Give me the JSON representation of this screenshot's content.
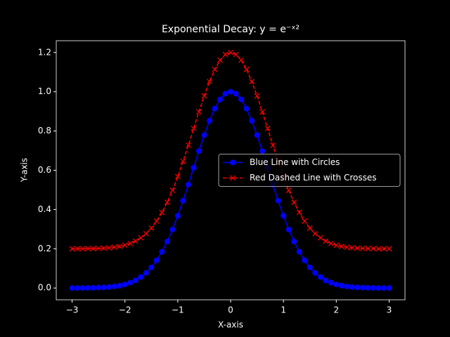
{
  "chart_data": {
    "type": "line",
    "title": "Exponential Decay: y = e⁻ˣ²",
    "xlabel": "X-axis",
    "ylabel": "Y-axis",
    "x": [
      -3,
      -2.9,
      -2.8,
      -2.7,
      -2.6,
      -2.5,
      -2.4,
      -2.3,
      -2.2,
      -2.1,
      -2,
      -1.9,
      -1.8,
      -1.7,
      -1.6,
      -1.5,
      -1.4,
      -1.3,
      -1.2,
      -1.1,
      -1,
      -0.9,
      -0.8,
      -0.7,
      -0.6,
      -0.5,
      -0.4,
      -0.3,
      -0.2,
      -0.1,
      0,
      0.1,
      0.2,
      0.3,
      0.4,
      0.5,
      0.6,
      0.7,
      0.8,
      0.9,
      1,
      1.1,
      1.2,
      1.3,
      1.4,
      1.5,
      1.6,
      1.7,
      1.8,
      1.9,
      2,
      2.1,
      2.2,
      2.3,
      2.4,
      2.5,
      2.6,
      2.7,
      2.8,
      2.9,
      3
    ],
    "series": [
      {
        "name": "Blue Line with Circles",
        "color": "blue",
        "marker": "circle",
        "dash": false,
        "values": [
          0,
          0,
          0,
          0.001,
          0.001,
          0.002,
          0.003,
          0.005,
          0.008,
          0.012,
          0.018,
          0.027,
          0.039,
          0.056,
          0.077,
          0.105,
          0.141,
          0.185,
          0.237,
          0.298,
          0.368,
          0.445,
          0.527,
          0.613,
          0.698,
          0.779,
          0.852,
          0.914,
          0.961,
          0.99,
          1,
          0.99,
          0.961,
          0.914,
          0.852,
          0.779,
          0.698,
          0.613,
          0.527,
          0.445,
          0.368,
          0.298,
          0.237,
          0.185,
          0.141,
          0.105,
          0.077,
          0.056,
          0.039,
          0.027,
          0.018,
          0.012,
          0.008,
          0.005,
          0.003,
          0.002,
          0.001,
          0.001,
          0,
          0,
          0
        ]
      },
      {
        "name": "Red Dashed Line with Crosses",
        "color": "red",
        "marker": "x",
        "dash": true,
        "values": [
          0.2,
          0.2,
          0.2,
          0.201,
          0.201,
          0.202,
          0.203,
          0.205,
          0.208,
          0.212,
          0.218,
          0.227,
          0.239,
          0.256,
          0.277,
          0.305,
          0.341,
          0.385,
          0.437,
          0.498,
          0.568,
          0.645,
          0.727,
          0.813,
          0.898,
          0.979,
          1.052,
          1.114,
          1.161,
          1.19,
          1.2,
          1.19,
          1.161,
          1.114,
          1.052,
          0.979,
          0.898,
          0.813,
          0.727,
          0.645,
          0.568,
          0.498,
          0.437,
          0.385,
          0.341,
          0.305,
          0.277,
          0.256,
          0.239,
          0.227,
          0.218,
          0.212,
          0.208,
          0.205,
          0.203,
          0.202,
          0.201,
          0.201,
          0.2,
          0.2,
          0.2
        ]
      }
    ],
    "xlim": [
      -3.3,
      3.3
    ],
    "xticks": [
      {
        "value": -3,
        "label": "−3"
      },
      {
        "value": -2,
        "label": "−2"
      },
      {
        "value": -1,
        "label": "−1"
      },
      0,
      1,
      2,
      3
    ],
    "ylim": [
      -0.06,
      1.26
    ],
    "yticks": [
      {
        "value": 0,
        "label": "0.0"
      },
      0.2,
      0.4,
      0.6,
      0.8,
      {
        "value": 1,
        "label": "1.0"
      },
      1.2
    ],
    "legend": "center right",
    "grid": false
  }
}
